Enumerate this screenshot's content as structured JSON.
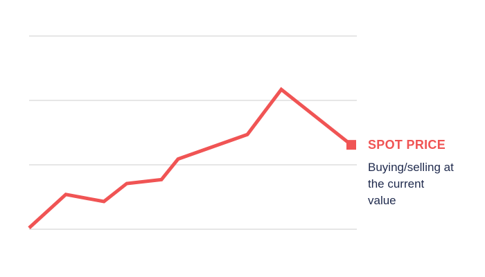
{
  "chart_data": {
    "type": "line",
    "x": [
      0,
      53,
      108,
      141,
      191,
      215,
      315,
      364,
      465
    ],
    "xlim": [
      0,
      473
    ],
    "series": [
      {
        "name": "SPOT PRICE",
        "color": "#f05454",
        "values": [
          0.02,
          0.54,
          0.43,
          0.71,
          0.77,
          1.09,
          1.47,
          2.17,
          1.31
        ]
      }
    ],
    "description": "Buying/selling at the current value",
    "ylim": [
      0,
      3
    ],
    "yticks": [
      0,
      1,
      2,
      3
    ],
    "grid": true
  }
}
